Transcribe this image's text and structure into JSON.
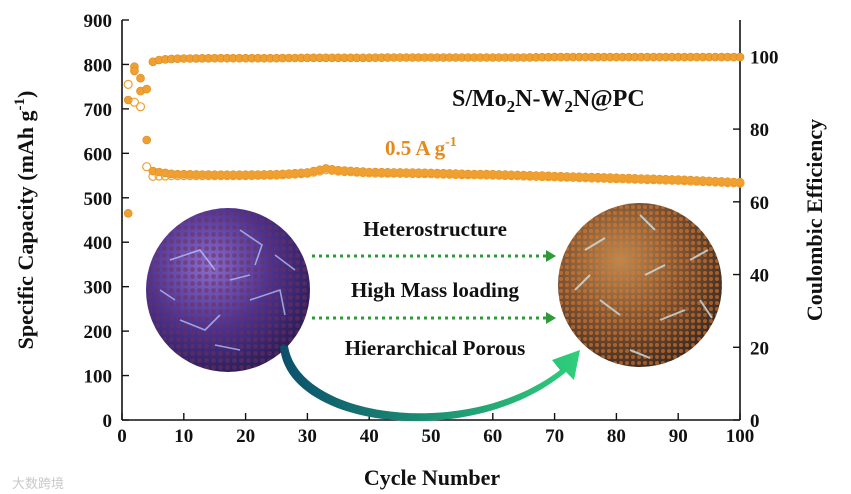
{
  "chart_data": {
    "type": "scatter",
    "xlabel": "Cycle Number",
    "ylabel_left": "Specific Capacity (mAh g",
    "ylabel_left_sup": "-1",
    "ylabel_left_close": ")",
    "ylabel_right": "Coulombic Efficiency",
    "xlim": [
      0,
      100
    ],
    "ylim_left": [
      0,
      900
    ],
    "ylim_right": [
      0,
      110
    ],
    "x_ticks": [
      "0",
      "10",
      "20",
      "30",
      "40",
      "50",
      "60",
      "70",
      "80",
      "90",
      "100"
    ],
    "y_left_ticks": [
      "0",
      "100",
      "200",
      "300",
      "400",
      "500",
      "600",
      "700",
      "800",
      "900"
    ],
    "y_right_ticks": [
      "0",
      "20",
      "40",
      "60",
      "80",
      "100"
    ],
    "series": [
      {
        "name": "Discharge capacity",
        "axis": "left",
        "marker": "filled-circle",
        "color": "#f0a030",
        "x": [
          1,
          2,
          3,
          4,
          5,
          6,
          7,
          8,
          9,
          10,
          15,
          20,
          25,
          30,
          33,
          35,
          40,
          45,
          50,
          55,
          60,
          65,
          70,
          75,
          80,
          85,
          90,
          95,
          100
        ],
        "y": [
          465,
          795,
          740,
          630,
          560,
          558,
          556,
          554,
          553,
          553,
          552,
          552,
          553,
          557,
          566,
          562,
          558,
          557,
          556,
          554,
          553,
          551,
          549,
          547,
          545,
          543,
          541,
          538,
          535
        ]
      },
      {
        "name": "Charge capacity",
        "axis": "left",
        "marker": "hollow-circle",
        "color": "#f0a030",
        "x": [
          1,
          2,
          3,
          4,
          5,
          6,
          7,
          8,
          10,
          15,
          20,
          25,
          30,
          33,
          35,
          40,
          45,
          50,
          55,
          60,
          65,
          70,
          75,
          80,
          85,
          90,
          95,
          100
        ],
        "y": [
          755,
          715,
          705,
          570,
          548,
          549,
          549,
          550,
          550,
          550,
          550,
          551,
          555,
          563,
          560,
          556,
          555,
          554,
          552,
          551,
          549,
          547,
          545,
          543,
          541,
          539,
          536,
          533
        ]
      },
      {
        "name": "Coulombic efficiency",
        "axis": "right",
        "marker": "filled-circle",
        "color": "#f0a030",
        "x": [
          1,
          2,
          3,
          4,
          5,
          6,
          7,
          8,
          10,
          15,
          20,
          25,
          30,
          35,
          40,
          45,
          50,
          55,
          60,
          65,
          70,
          75,
          80,
          85,
          90,
          95,
          100
        ],
        "y": [
          88,
          96,
          94,
          91,
          98.5,
          99,
          99.2,
          99.3,
          99.4,
          99.5,
          99.5,
          99.5,
          99.6,
          99.6,
          99.6,
          99.7,
          99.7,
          99.7,
          99.7,
          99.7,
          99.8,
          99.8,
          99.8,
          99.8,
          99.8,
          99.8,
          99.8
        ]
      }
    ],
    "annotations": {
      "formula_parts": [
        "S/Mo",
        "2",
        "N-W",
        "2",
        "N@PC"
      ],
      "rate_main": "0.5 A g",
      "rate_sup": "-1",
      "features": [
        "Heterostructure",
        "High Mass loading",
        "Hierarchical Porous"
      ]
    }
  },
  "watermark": "大数跨境",
  "colors": {
    "marker": "#f0a030",
    "rate_text": "#e38a1a",
    "dotted_arrow": "#2e9a3a",
    "curved_arrow_start": "#0b4f6c",
    "curved_arrow_end": "#2fd07a",
    "sphere_left": "#5a3c9a",
    "sphere_right": "#7a5a3a"
  }
}
